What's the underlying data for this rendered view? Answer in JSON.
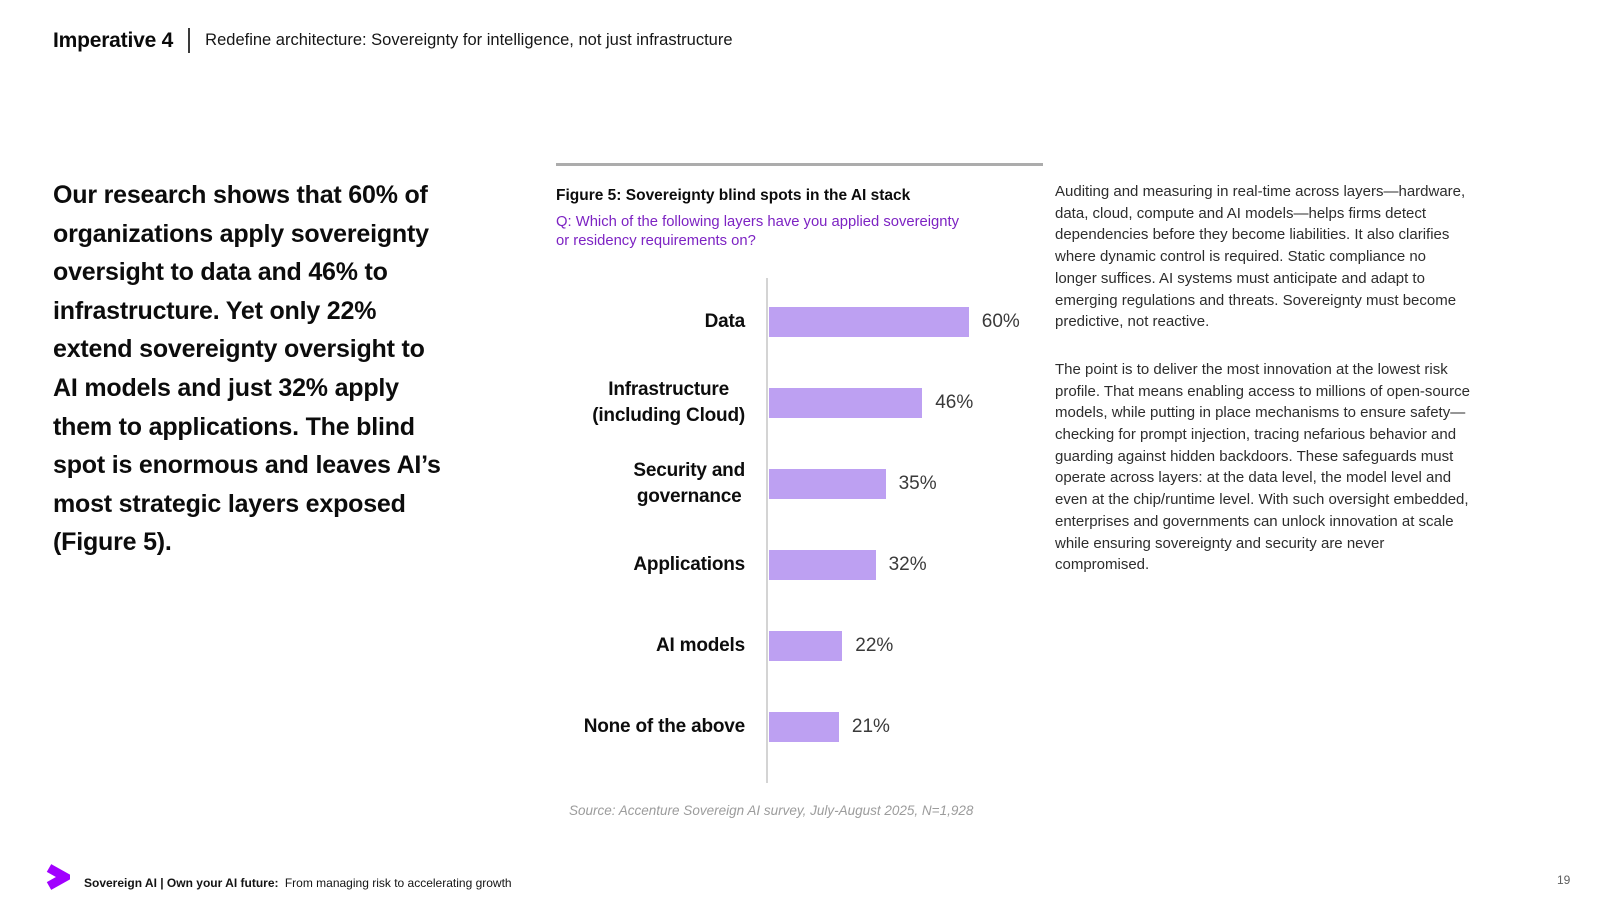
{
  "header": {
    "imperative": "Imperative 4",
    "subtitle": "Redefine architecture: Sovereignty for intelligence, not just infrastructure"
  },
  "left_column": {
    "lead_lines": [
      "Our research shows that 60% of",
      "organizations apply sovereignty",
      "oversight to data and 46% to",
      "infrastructure. Yet only 22%",
      "extend sovereignty oversight to",
      "AI models and just 32% apply",
      "them to applications. The blind",
      "spot is enormous and leaves AI’s",
      "most strategic layers exposed",
      "(Figure 5)."
    ]
  },
  "figure": {
    "title": "Figure 5: Sovereignty blind spots in the AI stack",
    "question_lines": [
      "Q: Which of the following layers have you applied sovereignty",
      "or residency requirements on?"
    ],
    "source": "Source: Accenture Sovereign AI survey, July-August 2025, N=1,928"
  },
  "chart_data": {
    "type": "bar",
    "orientation": "horizontal",
    "title": "Figure 5: Sovereignty blind spots in the AI stack",
    "categories": [
      "Data",
      "Infrastructure (including Cloud)",
      "Security and governance",
      "Applications",
      "AI models",
      "None of the above"
    ],
    "category_lines": [
      [
        "Data"
      ],
      [
        "Infrastructure",
        "(including Cloud)"
      ],
      [
        "Security and",
        "governance"
      ],
      [
        "Applications"
      ],
      [
        "AI models"
      ],
      [
        "None of the above"
      ]
    ],
    "values": [
      60,
      46,
      35,
      32,
      22,
      21
    ],
    "value_labels": [
      "60%",
      "46%",
      "35%",
      "32%",
      "22%",
      "21%"
    ],
    "unit": "%",
    "xlim": [
      0,
      100
    ],
    "grid": false,
    "legend": false,
    "bar_color": "#bda0f2",
    "axis_color": "#d4d4d4"
  },
  "right_column": {
    "paragraph1_lines": [
      "Auditing and measuring in real-time across layers—hardware,",
      "data, cloud, compute and AI models—helps firms detect",
      "dependencies before they become liabilities. It also clarifies",
      "where dynamic control is required. Static compliance no",
      "longer suffices. AI systems must anticipate and adapt to",
      "emerging regulations and threats. Sovereignty must become",
      "predictive, not reactive."
    ],
    "paragraph2_lines": [
      "The point is to deliver the most innovation at the lowest risk",
      "profile. That means enabling access to millions of open-source",
      "models, while putting in place mechanisms to ensure safety—",
      "checking for prompt injection, tracing nefarious behavior and",
      "guarding against hidden backdoors. These safeguards must",
      "operate across layers: at the data level, the model level and",
      "even at the chip/runtime level. With such oversight embedded,",
      "enterprises and governments can unlock innovation at scale",
      "while ensuring sovereignty and security are never",
      "compromised."
    ]
  },
  "footer": {
    "brand_bold": "Sovereign AI | Own your AI future:",
    "brand_regular": "From managing risk to accelerating growth",
    "page_number": "19",
    "logo_color": "#a100ff"
  }
}
